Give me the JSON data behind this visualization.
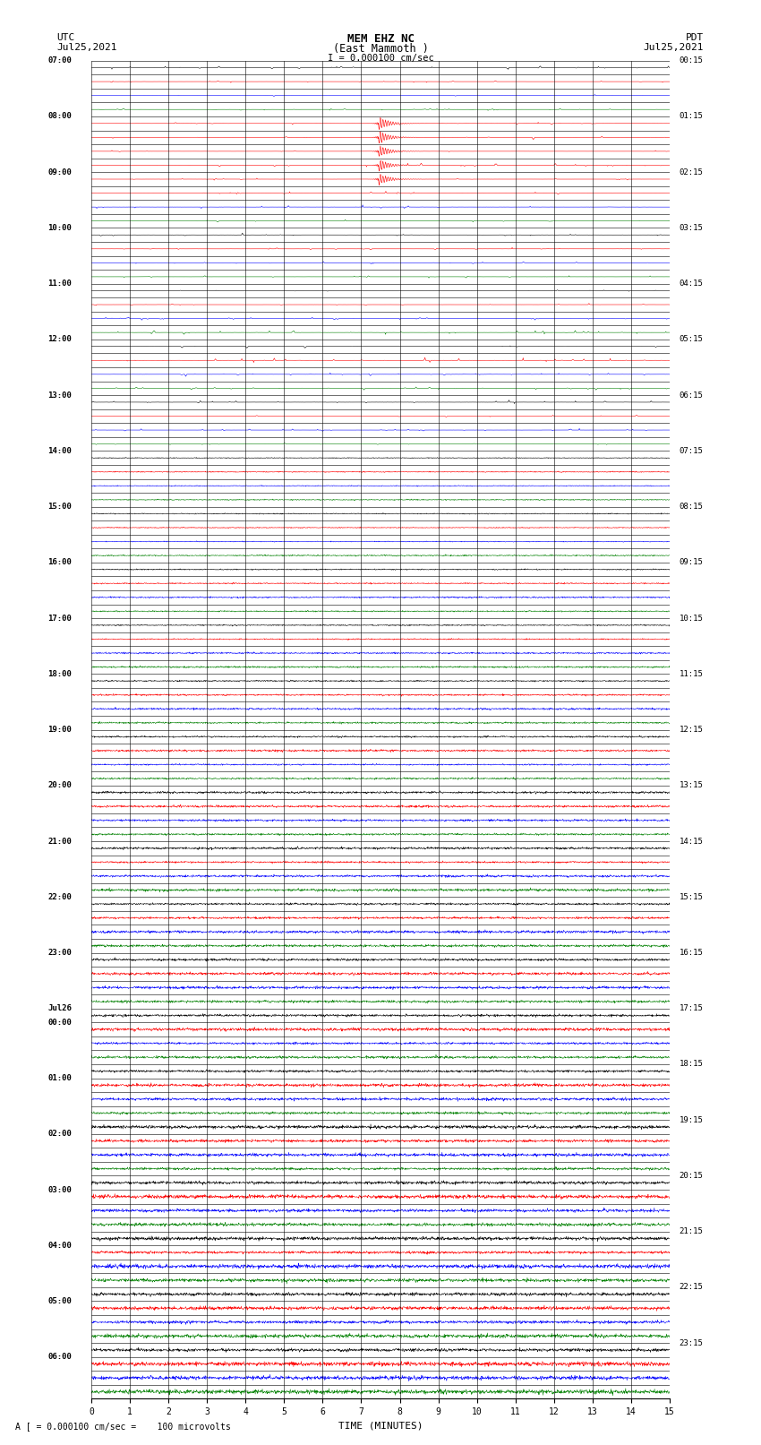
{
  "title_line1": "MEM EHZ NC",
  "title_line2": "(East Mammoth )",
  "title_scale": "I = 0.000100 cm/sec",
  "left_label_top": "UTC",
  "left_label_date": "Jul25,2021",
  "right_label_top": "PDT",
  "right_label_date": "Jul25,2021",
  "xlabel": "TIME (MINUTES)",
  "footnote": "A [ = 0.000100 cm/sec =    100 microvolts",
  "fig_width": 8.5,
  "fig_height": 16.13,
  "dpi": 100,
  "minutes_per_trace": 15,
  "trace_colors_cycle": [
    "black",
    "red",
    "blue",
    "green"
  ],
  "background_color": "white",
  "noise_amplitude_early": 0.018,
  "noise_amplitude_late": 0.09,
  "noise_transition_trace": 28,
  "quake_traces": [
    4,
    5,
    6,
    7,
    8
  ],
  "quake_minute": 7.45,
  "quake_color": "red",
  "left_utc_times": [
    "07:00",
    "",
    "",
    "",
    "08:00",
    "",
    "",
    "",
    "09:00",
    "",
    "",
    "",
    "10:00",
    "",
    "",
    "",
    "11:00",
    "",
    "",
    "",
    "12:00",
    "",
    "",
    "",
    "13:00",
    "",
    "",
    "",
    "14:00",
    "",
    "",
    "",
    "15:00",
    "",
    "",
    "",
    "16:00",
    "",
    "",
    "",
    "17:00",
    "",
    "",
    "",
    "18:00",
    "",
    "",
    "",
    "19:00",
    "",
    "",
    "",
    "20:00",
    "",
    "",
    "",
    "21:00",
    "",
    "",
    "",
    "22:00",
    "",
    "",
    "",
    "23:00",
    "",
    "",
    "",
    "Jul26",
    "00:00",
    "",
    "",
    "",
    "01:00",
    "",
    "",
    "",
    "02:00",
    "",
    "",
    "",
    "03:00",
    "",
    "",
    "",
    "04:00",
    "",
    "",
    "",
    "05:00",
    "",
    "",
    "",
    "06:00",
    "",
    ""
  ],
  "right_pdt_times": [
    "00:15",
    "",
    "",
    "",
    "01:15",
    "",
    "",
    "",
    "02:15",
    "",
    "",
    "",
    "03:15",
    "",
    "",
    "",
    "04:15",
    "",
    "",
    "",
    "05:15",
    "",
    "",
    "",
    "06:15",
    "",
    "",
    "",
    "07:15",
    "",
    "",
    "",
    "08:15",
    "",
    "",
    "",
    "09:15",
    "",
    "",
    "",
    "10:15",
    "",
    "",
    "",
    "11:15",
    "",
    "",
    "",
    "12:15",
    "",
    "",
    "",
    "13:15",
    "",
    "",
    "",
    "14:15",
    "",
    "",
    "",
    "15:15",
    "",
    "",
    "",
    "16:15",
    "",
    "",
    "",
    "17:15",
    "",
    "",
    "",
    "18:15",
    "",
    "",
    "",
    "19:15",
    "",
    "",
    "",
    "20:15",
    "",
    "",
    "",
    "21:15",
    "",
    "",
    "",
    "22:15",
    "",
    "",
    "",
    "23:15",
    ""
  ]
}
